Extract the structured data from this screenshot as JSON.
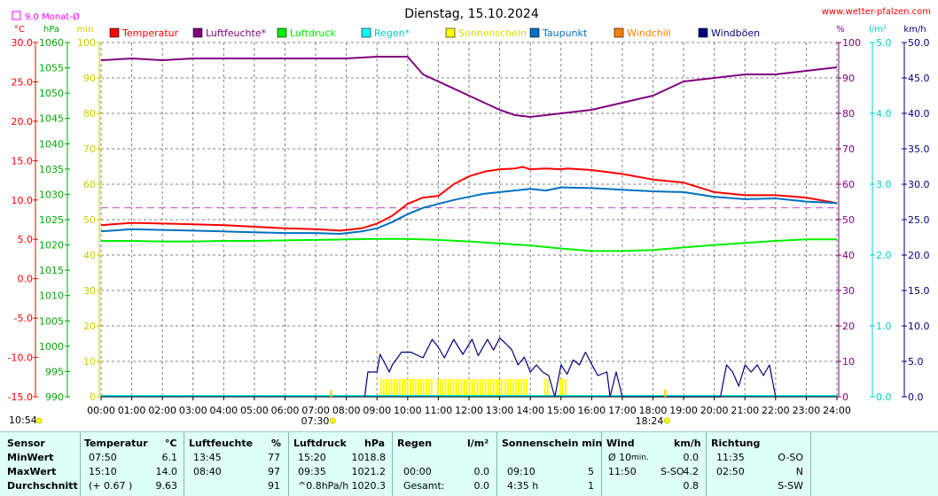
{
  "chart_data": {
    "type": "line",
    "title": "Dienstag, 15.10.2024",
    "source": "www.wetter-pfalzen.com",
    "month_avg_label": "9.0 Monat-Ø",
    "month_avg_value": 9.0,
    "x_ticks": [
      "00:00",
      "01:00",
      "02:00",
      "03:00",
      "04:00",
      "05:00",
      "06:00",
      "07:00",
      "08:00",
      "09:00",
      "10:00",
      "11:00",
      "12:00",
      "13:00",
      "14:00",
      "15:00",
      "16:00",
      "17:00",
      "18:00",
      "19:00",
      "20:00",
      "21:00",
      "22:00",
      "23:00",
      "24:00"
    ],
    "sunrise": "07:30",
    "sunset": "18:24",
    "current_time": "10:54",
    "axes": {
      "temp": {
        "unit": "°C",
        "min": -15,
        "max": 30,
        "ticks": [
          "30.0",
          "25.0",
          "20.0",
          "15.0",
          "10.0",
          "5.0",
          "0.0",
          "-5.0",
          "-10.0",
          "-15.0"
        ],
        "color": "#ff0000"
      },
      "pressure": {
        "unit": "hPa",
        "min": 990,
        "max": 1060,
        "ticks": [
          "1060",
          "1055",
          "1050",
          "1045",
          "1040",
          "1035",
          "1030",
          "1025",
          "1020",
          "1015",
          "1010",
          "1005",
          "1000",
          "995",
          "990"
        ],
        "color": "#00aa00"
      },
      "sun": {
        "unit": "min",
        "min": 0,
        "max": 100,
        "ticks": [
          "100",
          "90",
          "80",
          "70",
          "60",
          "50",
          "40",
          "30",
          "20",
          "10",
          "0"
        ],
        "color": "#cccc00"
      },
      "humidity": {
        "unit": "%",
        "min": 0,
        "max": 100,
        "ticks": [
          "100",
          "90",
          "80",
          "70",
          "60",
          "50",
          "40",
          "30",
          "20",
          "10",
          "0"
        ],
        "color": "#800080"
      },
      "rain": {
        "unit": "l/m²",
        "min": 0,
        "max": 5,
        "ticks": [
          "5.0",
          "4.0",
          "3.0",
          "2.0",
          "1.0",
          "0.0"
        ],
        "color": "#00cccc"
      },
      "wind": {
        "unit": "km/h",
        "min": 0,
        "max": 50,
        "ticks": [
          "50.0",
          "45.0",
          "40.0",
          "35.0",
          "30.0",
          "25.0",
          "20.0",
          "15.0",
          "10.0",
          "5.0",
          "0.0"
        ],
        "color": "#000080"
      }
    },
    "legend": [
      {
        "name": "Temperatur",
        "color": "#ff0000"
      },
      {
        "name": "Luftfeuchte*",
        "color": "#800080"
      },
      {
        "name": "Luftdruck",
        "color": "#00ee00"
      },
      {
        "name": "Regen*",
        "color": "#00ffff"
      },
      {
        "name": "Sonnenschein",
        "color": "#ffff00"
      },
      {
        "name": "Taupunkt",
        "color": "#0070c0"
      },
      {
        "name": "Windchill",
        "color": "#ff8000"
      },
      {
        "name": "Windböen",
        "color": "#000080"
      }
    ],
    "series": [
      {
        "name": "Temperatur",
        "axis": "temp",
        "color": "#ff0000",
        "x": [
          0,
          1,
          2,
          3,
          4,
          5,
          6,
          7,
          7.8,
          8.5,
          9,
          9.5,
          10,
          10.5,
          11,
          11.5,
          12,
          12.5,
          13,
          13.5,
          13.75,
          14,
          14.5,
          15,
          15.2,
          16,
          17,
          18,
          19,
          20,
          21,
          22,
          23,
          24
        ],
        "y": [
          6.8,
          7.1,
          7.0,
          6.9,
          6.8,
          6.6,
          6.4,
          6.3,
          6.1,
          6.4,
          7.0,
          8.0,
          9.5,
          10.3,
          10.5,
          12.0,
          13.0,
          13.6,
          13.9,
          14.0,
          14.2,
          13.9,
          14.0,
          13.9,
          14.0,
          13.8,
          13.3,
          12.6,
          12.2,
          11.0,
          10.6,
          10.6,
          10.3,
          9.6
        ]
      },
      {
        "name": "Taupunkt",
        "axis": "temp",
        "color": "#0070c0",
        "x": [
          0,
          1,
          2,
          3,
          4,
          5,
          6,
          7,
          7.8,
          8.5,
          9,
          9.5,
          10,
          10.5,
          11,
          11.5,
          12,
          12.5,
          13,
          13.5,
          14,
          14.5,
          15,
          16,
          17,
          18,
          19,
          20,
          21,
          22,
          23,
          24
        ],
        "y": [
          6.0,
          6.3,
          6.2,
          6.1,
          6.0,
          5.9,
          5.8,
          5.8,
          5.7,
          6.0,
          6.4,
          7.2,
          8.2,
          9.0,
          9.5,
          10.0,
          10.4,
          10.8,
          11.0,
          11.2,
          11.4,
          11.2,
          11.6,
          11.5,
          11.3,
          11.1,
          11.0,
          10.4,
          10.1,
          10.2,
          9.8,
          9.6
        ]
      },
      {
        "name": "Luftfeuchte*",
        "axis": "humidity",
        "color": "#800080",
        "x": [
          0,
          1,
          2,
          3,
          4,
          5,
          6,
          7,
          8,
          9,
          10,
          10.5,
          11,
          12,
          13,
          13.5,
          14,
          15,
          16,
          17,
          18,
          18.5,
          19,
          20,
          21,
          22,
          23,
          24
        ],
        "y": [
          95,
          95.5,
          95,
          95.5,
          95.5,
          95.5,
          95.5,
          95.5,
          95.5,
          96,
          96,
          91,
          89,
          85,
          81,
          79.5,
          79,
          80,
          81,
          83,
          85,
          87,
          89,
          90,
          91,
          91,
          92,
          93
        ]
      },
      {
        "name": "Luftdruck",
        "axis": "pressure",
        "color": "#00ee00",
        "x": [
          0,
          1,
          2,
          3,
          4,
          5,
          6,
          7,
          8,
          9,
          9.58,
          10,
          11,
          12,
          13,
          14,
          15,
          16,
          16.5,
          17,
          18,
          19,
          20,
          21,
          22,
          23,
          24
        ],
        "y": [
          1020.8,
          1020.8,
          1020.7,
          1020.7,
          1020.8,
          1020.8,
          1020.9,
          1021.0,
          1021.1,
          1021.2,
          1021.2,
          1021.2,
          1021.0,
          1020.7,
          1020.3,
          1019.9,
          1019.3,
          1018.8,
          1018.8,
          1018.8,
          1019.0,
          1019.5,
          1020.0,
          1020.4,
          1020.8,
          1021.1,
          1021.1
        ]
      },
      {
        "name": "Windböen",
        "axis": "wind",
        "color": "#000080",
        "x": [
          8.6,
          8.7,
          9.0,
          9.1,
          9.4,
          9.5,
          9.8,
          10.1,
          10.5,
          10.8,
          11.0,
          11.2,
          11.5,
          11.8,
          12.1,
          12.3,
          12.6,
          12.8,
          13.0,
          13.2,
          13.4,
          13.6,
          13.8,
          14.0,
          14.2,
          14.4,
          14.6,
          14.8,
          15.0,
          15.2,
          15.4,
          15.6,
          15.8,
          16.0,
          16.2,
          16.5,
          16.6,
          16.8,
          17.0,
          17.1,
          20.2,
          20.4,
          20.6,
          20.8,
          21.0,
          21.2,
          21.4,
          21.6,
          21.8,
          22.0
        ],
        "y": [
          0,
          3.5,
          3.5,
          6,
          3.5,
          4.5,
          6.3,
          6.3,
          5.5,
          8.1,
          7,
          5.5,
          8.1,
          6,
          8.1,
          5.8,
          8.1,
          6.6,
          8.3,
          7.5,
          6.6,
          4.5,
          5.6,
          3.5,
          4.5,
          3.5,
          3.0,
          0,
          4.5,
          3.2,
          5.2,
          4.5,
          6.3,
          4.6,
          3.0,
          3.5,
          0,
          3.5,
          0,
          0,
          0,
          4.5,
          3.5,
          1.5,
          4.5,
          3.5,
          4.5,
          3.0,
          4.5,
          0
        ]
      }
    ],
    "sunshine_blocks": [
      [
        9.1,
        10.8
      ],
      [
        10.95,
        13.1
      ],
      [
        13.15,
        13.85
      ],
      [
        14.45,
        14.55
      ],
      [
        14.95,
        15.15
      ]
    ],
    "month_avg_line_temp": 9.0
  },
  "stats": {
    "headers": {
      "sensor": "Sensor",
      "temp": "Temperatur",
      "temp_unit": "°C",
      "hum": "Luftfeuchte",
      "hum_unit": "%",
      "press": "Luftdruck",
      "press_unit": "hPa",
      "rain": "Regen",
      "rain_unit": "l/m²",
      "sun": "Sonnenschein min",
      "wind": "Wind",
      "wind_unit": "km/h",
      "dir": "Richtung"
    },
    "rows": [
      {
        "label": "MinWert",
        "temp_time": "07:50",
        "temp_val": "6.1",
        "hum_time": "13:45",
        "hum_val": "77",
        "press_time": "15:20",
        "press_val": "1018.8",
        "rain_time": "",
        "rain_val": "",
        "sun_time": "",
        "sun_val": "",
        "wind_time": "Ø 10",
        "wind_time_sub": "min.",
        "wind_dir": "",
        "wind_val": "0.0",
        "dir_time": "11:35",
        "dir_val": "O-SO"
      },
      {
        "label": "MaxWert",
        "temp_time": "15:10",
        "temp_val": "14.0",
        "hum_time": "08:40",
        "hum_val": "97",
        "press_time": "09:35",
        "press_val": "1021.2",
        "rain_time": "00:00",
        "rain_val": "0.0",
        "sun_time": "09:10",
        "sun_val": "5",
        "wind_time": "11:50",
        "wind_time_sub": "",
        "wind_dir": "S-SO",
        "wind_val": "4.2",
        "dir_time": "02:50",
        "dir_val": "N"
      },
      {
        "label": "Durchschnitt",
        "temp_time": "(+ 0.67 )",
        "temp_val": "9.63",
        "hum_time": "",
        "hum_val": "91",
        "press_time": "^0.8hPa/h",
        "press_val": "1020.3",
        "rain_time": "Gesamt:",
        "rain_val": "0.0",
        "sun_time": "4:35 h",
        "sun_val": "1",
        "wind_time": "",
        "wind_time_sub": "",
        "wind_dir": "",
        "wind_val": "0.8",
        "dir_time": "",
        "dir_val": "S-SW"
      }
    ]
  }
}
